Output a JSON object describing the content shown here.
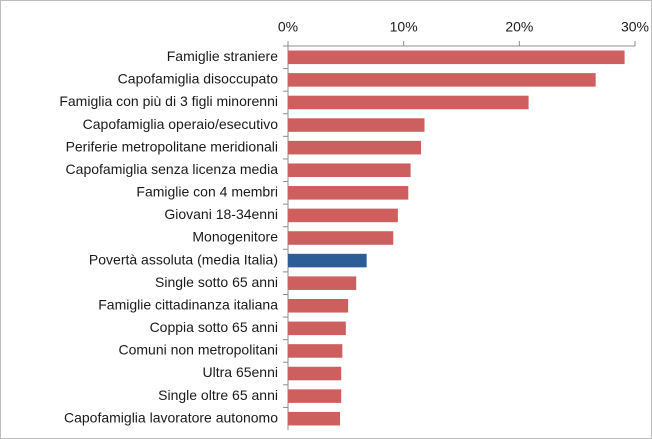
{
  "chart_data": {
    "type": "bar",
    "orientation": "horizontal",
    "categories": [
      "Famiglie straniere",
      "Capofamiglia disoccupato",
      "Famiglia con più di 3 figli minorenni",
      "Capofamiglia operaio/esecutivo",
      "Periferie metropolitane meridionali",
      "Capofamiglia senza licenza media",
      "Famiglie con 4 membri",
      "Giovani 18-34enni",
      "Monogenitore",
      "Povertà assoluta (media Italia)",
      "Single sotto 65 anni",
      "Famiglie cittadinanza italiana",
      "Coppia sotto 65 anni",
      "Comuni non metropolitani",
      "Ultra 65enni",
      "Single oltre 65 anni",
      "Capofamiglia lavoratore autonomo"
    ],
    "values": [
      29.1,
      26.6,
      20.8,
      11.8,
      11.5,
      10.6,
      10.4,
      9.5,
      9.1,
      6.8,
      5.9,
      5.2,
      5.0,
      4.7,
      4.6,
      4.6,
      4.5
    ],
    "colors": [
      "#cd5f5f",
      "#cd5f5f",
      "#cd5f5f",
      "#cd5f5f",
      "#cd5f5f",
      "#cd5f5f",
      "#cd5f5f",
      "#cd5f5f",
      "#cd5f5f",
      "#2c5d96",
      "#cd5f5f",
      "#cd5f5f",
      "#cd5f5f",
      "#cd5f5f",
      "#cd5f5f",
      "#cd5f5f",
      "#cd5f5f"
    ],
    "xlim": [
      0,
      30
    ],
    "xticks": [
      {
        "value": 0,
        "label": "0%"
      },
      {
        "value": 10,
        "label": "10%"
      },
      {
        "value": 20,
        "label": "20%"
      },
      {
        "value": 30,
        "label": "30%"
      }
    ],
    "grid": false
  }
}
